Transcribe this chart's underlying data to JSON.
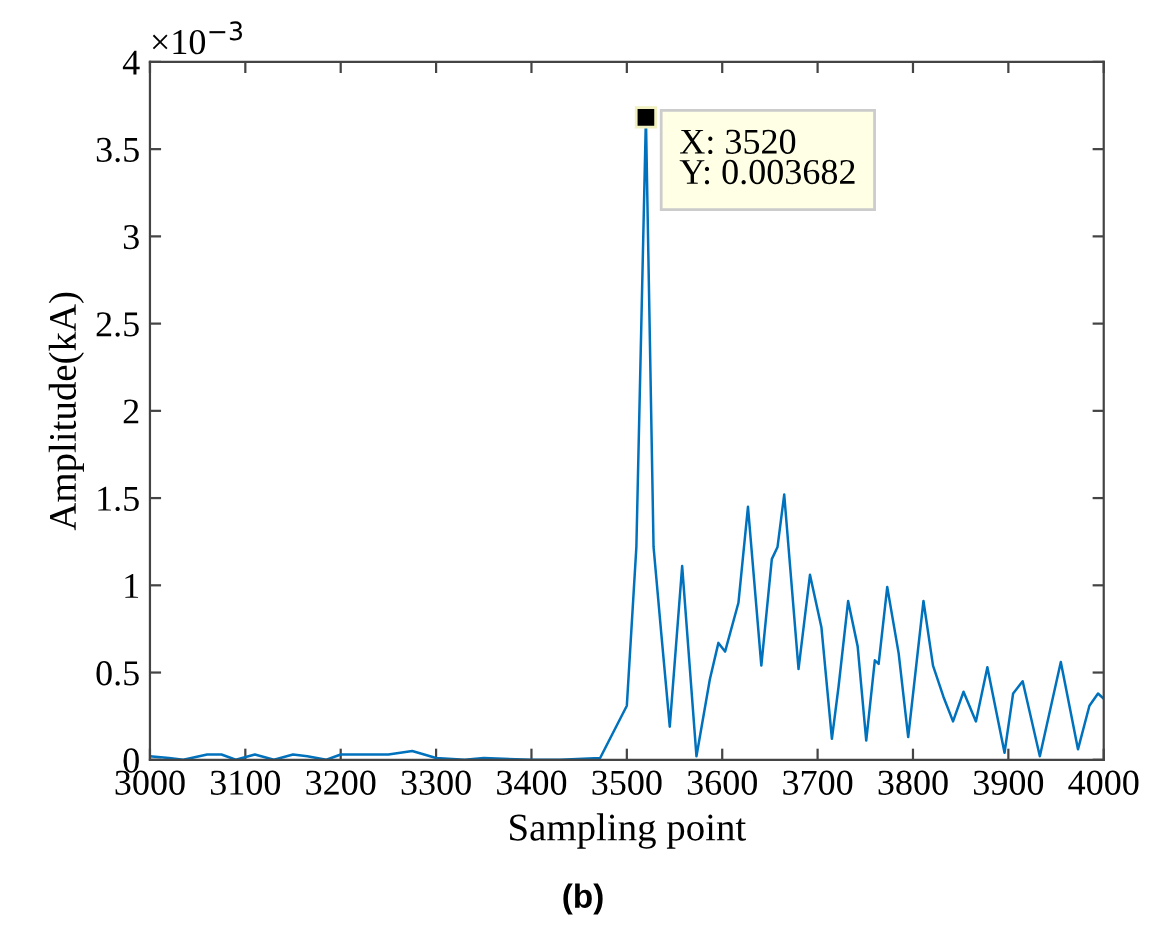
{
  "chart_data": {
    "type": "line",
    "title": "(b)",
    "xlabel": "Sampling point",
    "ylabel": "Amplitude(kA)",
    "annotations": [
      "×10$^{−3}$",
      {
        "text": "X: 3520\nY: 0.003682",
        "x": 3520,
        "y": 3.682
      }
    ],
    "x": [
      3000,
      3020,
      3035,
      3060,
      3075,
      3090,
      3110,
      3130,
      3150,
      3165,
      3185,
      3200,
      3250,
      3275,
      3300,
      3330,
      3350,
      3400,
      3430,
      3472,
      3500,
      3510,
      3520,
      3528,
      3536,
      3545,
      3558,
      3573,
      3587,
      3596,
      3603,
      3617,
      3627,
      3641,
      3652,
      3658,
      3665,
      3680,
      3692,
      3704,
      3715,
      3722,
      3732,
      3742,
      3751,
      3760,
      3764,
      3773,
      3785,
      3795,
      3811,
      3821,
      3832,
      3842,
      3853,
      3866,
      3878,
      3896,
      3905,
      3915,
      3933,
      3955,
      3973,
      3985,
      3994,
      4000
    ],
    "series": [
      {
        "color": "#0072bd",
        "values": [
          0.02,
          0.01,
          0.0,
          0.03,
          0.03,
          0.0,
          0.03,
          0.0,
          0.03,
          0.02,
          0.0,
          0.03,
          0.03,
          0.05,
          0.01,
          0.0,
          0.01,
          0.0,
          0.0,
          0.01,
          0.31,
          1.22,
          3.682,
          1.22,
          0.73,
          0.19,
          1.11,
          0.02,
          0.46,
          0.67,
          0.62,
          0.9,
          1.45,
          0.54,
          1.15,
          1.22,
          1.52,
          0.52,
          1.06,
          0.76,
          0.12,
          0.42,
          0.91,
          0.65,
          0.11,
          0.57,
          0.55,
          0.99,
          0.61,
          0.13,
          0.91,
          0.54,
          0.36,
          0.22,
          0.39,
          0.22,
          0.53,
          0.04,
          0.38,
          0.45,
          0.02,
          0.56,
          0.06,
          0.31,
          0.38,
          0.35
        ]
      }
    ],
    "xlim": [
      3000,
      4000
    ],
    "xticks": [
      3000,
      3100,
      3200,
      3300,
      3400,
      3500,
      3600,
      3700,
      3800,
      3900,
      4000
    ],
    "ylim": [
      0,
      4
    ],
    "yticks": [
      0,
      0.5,
      1,
      1.5,
      2,
      2.5,
      3,
      3.5,
      4
    ],
    "grid": false,
    "legend": false,
    "marker": "none",
    "line_style": "solid"
  }
}
